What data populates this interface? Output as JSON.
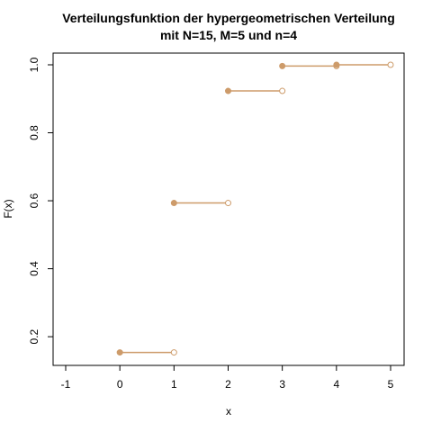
{
  "chart_data": {
    "type": "step",
    "title": "Verteilungsfunktion der hypergeometrischen Verteilung",
    "subtitle": "mit N=15, M=5 und n=4",
    "xlabel": "x",
    "ylabel": "F(x)",
    "xlim": [
      -1,
      5
    ],
    "ylim": [
      0.15,
      1.0
    ],
    "x_ticks": [
      -1,
      0,
      1,
      2,
      3,
      4,
      5
    ],
    "y_ticks": [
      0.2,
      0.4,
      0.6,
      0.8,
      1.0
    ],
    "x_tick_labels": [
      "-1",
      "0",
      "1",
      "2",
      "3",
      "4",
      "5"
    ],
    "y_tick_labels": [
      "0.2",
      "0.4",
      "0.6",
      "0.8",
      "1.0"
    ],
    "series": [
      {
        "name": "F(x)",
        "segments": [
          {
            "x_start": 0,
            "x_end": 1,
            "y": 0.1538
          },
          {
            "x_start": 1,
            "x_end": 2,
            "y": 0.5934
          },
          {
            "x_start": 2,
            "x_end": 3,
            "y": 0.9231
          },
          {
            "x_start": 3,
            "x_end": 4,
            "y": 0.9963
          },
          {
            "x_start": 4,
            "x_end": 5,
            "y": 1.0
          }
        ]
      }
    ],
    "color": "#CD9B6A",
    "grid": false
  }
}
